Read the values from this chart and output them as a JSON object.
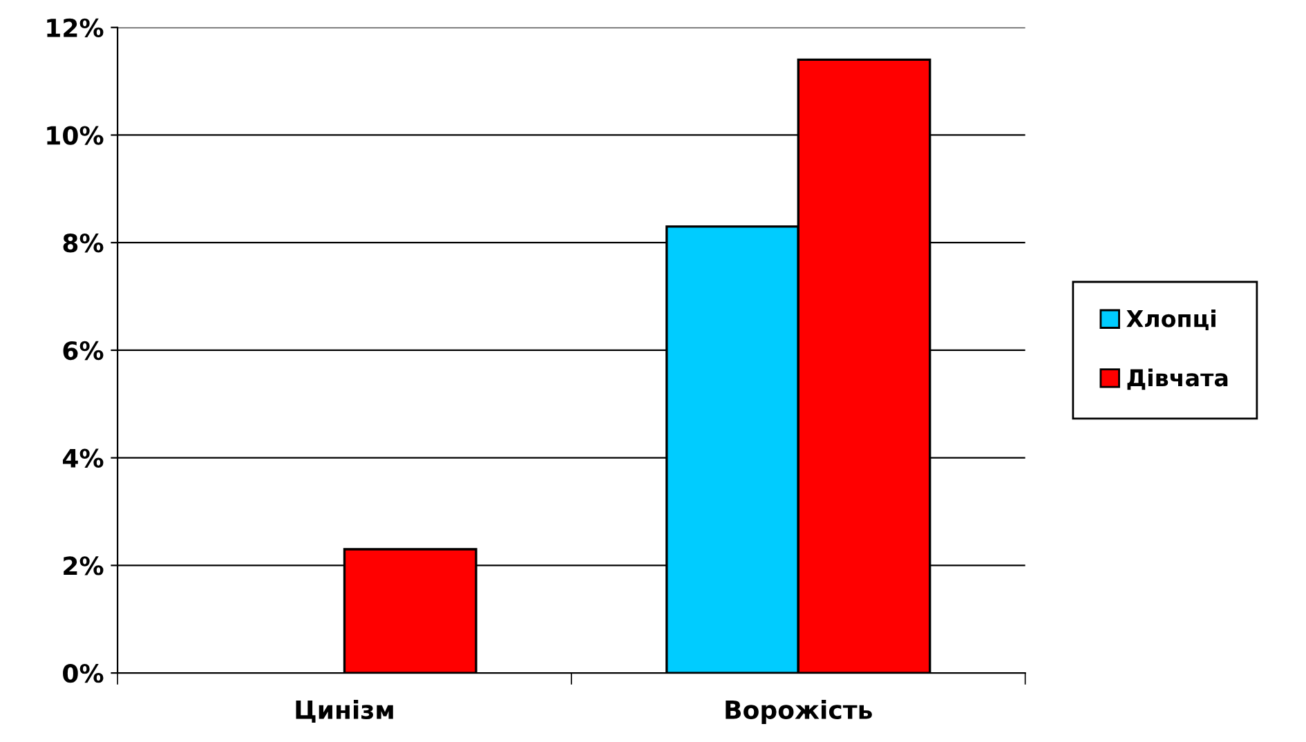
{
  "chart_data": {
    "type": "bar",
    "categories": [
      "Цинізм",
      "Ворожість"
    ],
    "series": [
      {
        "name": "Хлопці",
        "color": "#00ccff",
        "values": [
          null,
          8.3
        ]
      },
      {
        "name": "Дівчата",
        "color": "#ff0000",
        "values": [
          2.3,
          11.4
        ]
      }
    ],
    "ylim": [
      0,
      12
    ],
    "yticks": [
      {
        "value": 0,
        "label": "0%"
      },
      {
        "value": 2,
        "label": "2%"
      },
      {
        "value": 4,
        "label": "4%"
      },
      {
        "value": 6,
        "label": "6%"
      },
      {
        "value": 8,
        "label": "8%"
      },
      {
        "value": 10,
        "label": "10%"
      },
      {
        "value": 12,
        "label": "12%"
      }
    ],
    "grid": "y",
    "legend": "right"
  }
}
